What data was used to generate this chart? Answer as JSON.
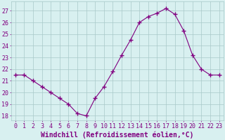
{
  "hours": [
    0,
    1,
    2,
    3,
    4,
    5,
    6,
    7,
    8,
    9,
    10,
    11,
    12,
    13,
    14,
    15,
    16,
    17,
    18,
    19,
    20,
    21,
    22,
    23
  ],
  "values": [
    21.5,
    21.5,
    21.0,
    20.5,
    20.0,
    19.5,
    19.0,
    18.2,
    18.0,
    19.5,
    20.5,
    21.8,
    23.2,
    24.5,
    26.0,
    26.5,
    26.8,
    27.2,
    26.7,
    25.3,
    23.2,
    22.0,
    21.5,
    21.5
  ],
  "line_color": "#800080",
  "marker": "+",
  "marker_size": 4,
  "bg_color": "#d8f0f0",
  "grid_color": "#a8c8c8",
  "xlabel": "Windchill (Refroidissement éolien,°C)",
  "xlabel_fontsize": 7,
  "ylabel_ticks": [
    18,
    19,
    20,
    21,
    22,
    23,
    24,
    25,
    26,
    27
  ],
  "ylim": [
    17.6,
    27.8
  ],
  "xlim": [
    -0.5,
    23.5
  ],
  "tick_fontsize": 6,
  "axis_color": "#800080",
  "lw": 0.8,
  "marker_color": "#800080"
}
